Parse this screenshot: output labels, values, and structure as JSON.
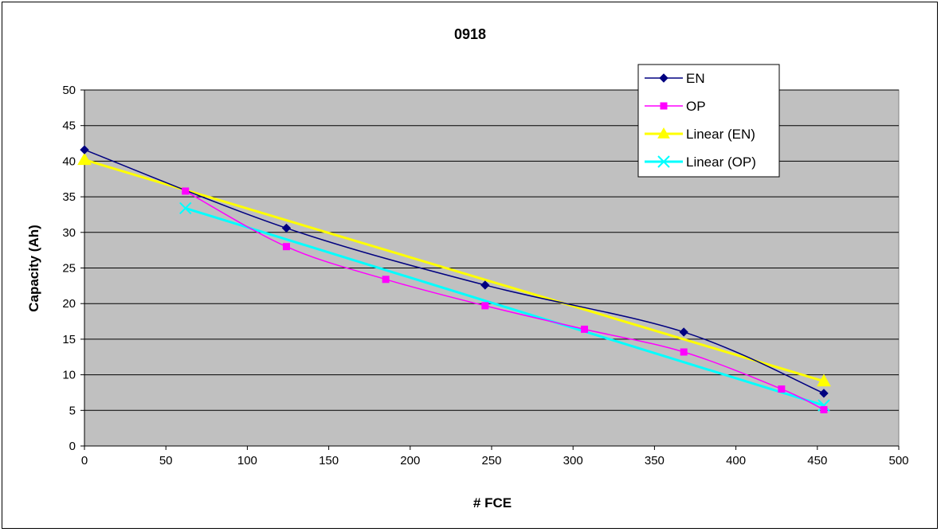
{
  "chart_data": {
    "type": "line",
    "title": "0918",
    "xlabel": "# FCE",
    "ylabel": "Capacity (Ah)",
    "xlim": [
      0,
      500
    ],
    "ylim": [
      0,
      50
    ],
    "x_ticks": [
      "0",
      "50",
      "100",
      "150",
      "200",
      "250",
      "300",
      "350",
      "400",
      "450",
      "500"
    ],
    "y_ticks": [
      "0",
      "5",
      "10",
      "15",
      "20",
      "25",
      "30",
      "35",
      "40",
      "45",
      "50"
    ],
    "grid": true,
    "legend_position": "top-right",
    "plot_background": "#c0c0c0",
    "series": [
      {
        "name": "EN",
        "color": "#000080",
        "marker": "diamond",
        "smooth": true,
        "points": [
          [
            0,
            41.6
          ],
          [
            124,
            30.6
          ],
          [
            246,
            22.6
          ],
          [
            368,
            16.0
          ],
          [
            454,
            7.4
          ]
        ]
      },
      {
        "name": "OP",
        "color": "#ff00ff",
        "marker": "square",
        "smooth": true,
        "points": [
          [
            62,
            35.8
          ],
          [
            124,
            28.0
          ],
          [
            185,
            23.4
          ],
          [
            246,
            19.7
          ],
          [
            307,
            16.4
          ],
          [
            368,
            13.2
          ],
          [
            428,
            8.0
          ],
          [
            454,
            5.1
          ]
        ]
      },
      {
        "name": "Linear (EN)",
        "color": "#ffff00",
        "marker": "triangle",
        "smooth": false,
        "points": [
          [
            0,
            40.2
          ],
          [
            454,
            9.1
          ]
        ]
      },
      {
        "name": "Linear (OP)",
        "color": "#00ffff",
        "marker": "x",
        "smooth": false,
        "points": [
          [
            62,
            33.4
          ],
          [
            454,
            5.7
          ]
        ]
      }
    ]
  }
}
